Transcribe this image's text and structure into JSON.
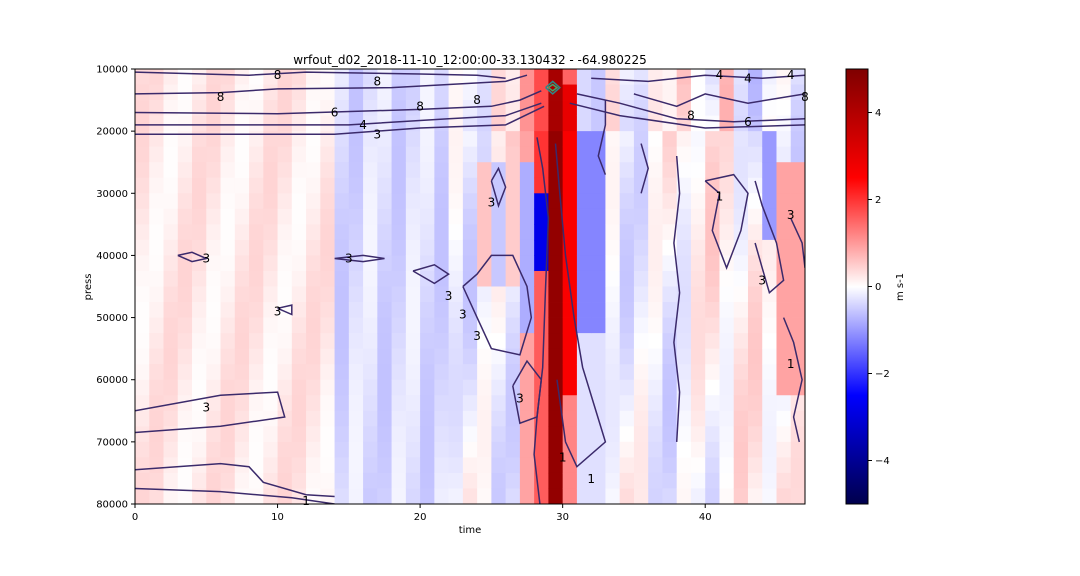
{
  "chart_data": [
    {
      "type": "heatmap",
      "title": "wrfout_d02_2018-11-10_12:00:00-33.130432 - -64.980225",
      "xlabel": "time",
      "ylabel": "press",
      "xlim": [
        0,
        47
      ],
      "ylim": [
        10000,
        80000
      ],
      "y_inverted": true,
      "x_ticks": [
        "0",
        "10",
        "20",
        "30",
        "40"
      ],
      "y_ticks": [
        "10000",
        "20000",
        "30000",
        "40000",
        "50000",
        "60000",
        "70000",
        "80000"
      ],
      "colorbar": {
        "label": "m s-1",
        "range": [
          -5,
          5
        ],
        "ticks": [
          "4",
          "2",
          "0",
          "−2",
          "−4"
        ],
        "colormap": "seismic",
        "colors": [
          "#00004c",
          "#0000ff",
          "#ffffff",
          "#ff0000",
          "#7f0000"
        ]
      },
      "heatmap_description_values": {
        "max_column_time": 29.5,
        "max_value_approx": 4.8
      },
      "contour_labels": [
        {
          "text": "8",
          "x": 10,
          "y": 11000
        },
        {
          "text": "6",
          "x": 14,
          "y": 17000
        },
        {
          "text": "4",
          "x": 16,
          "y": 19000
        },
        {
          "text": "3",
          "x": 17,
          "y": 20500
        },
        {
          "text": "8",
          "x": 6,
          "y": 14500
        },
        {
          "text": "8",
          "x": 17,
          "y": 12000
        },
        {
          "text": "8",
          "x": 20,
          "y": 16000
        },
        {
          "text": "8",
          "x": 24,
          "y": 15000
        },
        {
          "text": "4",
          "x": 41,
          "y": 11000
        },
        {
          "text": "4",
          "x": 43,
          "y": 11500
        },
        {
          "text": "4",
          "x": 46,
          "y": 11000
        },
        {
          "text": "8",
          "x": 39,
          "y": 17500
        },
        {
          "text": "6",
          "x": 43,
          "y": 18500
        },
        {
          "text": "8",
          "x": 47,
          "y": 14500
        },
        {
          "text": "3",
          "x": 5,
          "y": 40500
        },
        {
          "text": "3",
          "x": 15,
          "y": 40500
        },
        {
          "text": "3",
          "x": 10,
          "y": 49000
        },
        {
          "text": "3",
          "x": 22,
          "y": 46500
        },
        {
          "text": "3",
          "x": 23,
          "y": 49500
        },
        {
          "text": "3",
          "x": 25,
          "y": 31500
        },
        {
          "text": "3",
          "x": 24,
          "y": 53000
        },
        {
          "text": "3",
          "x": 27,
          "y": 63000
        },
        {
          "text": "3",
          "x": 5,
          "y": 64500
        },
        {
          "text": "1",
          "x": 12,
          "y": 79500
        },
        {
          "text": "1",
          "x": 30,
          "y": 72500
        },
        {
          "text": "1",
          "x": 32,
          "y": 76000
        },
        {
          "text": "1",
          "x": 41,
          "y": 30500
        },
        {
          "text": "1",
          "x": 46,
          "y": 57500
        },
        {
          "text": "3",
          "x": 46,
          "y": 33500
        },
        {
          "text": "3",
          "x": 44,
          "y": 44000
        }
      ]
    }
  ]
}
